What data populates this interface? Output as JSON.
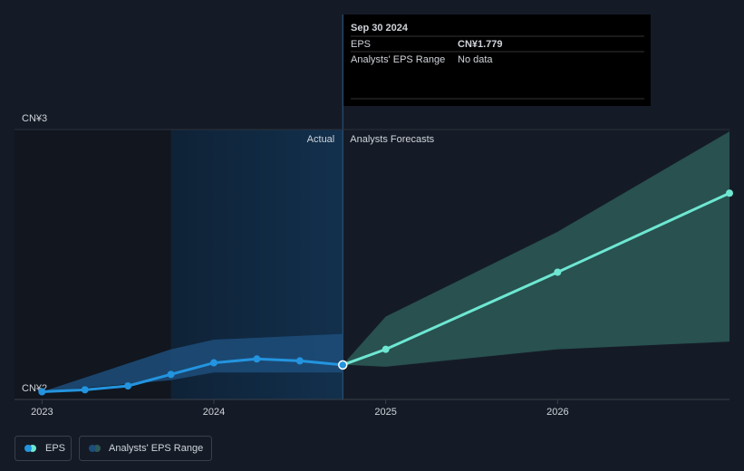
{
  "chart_data": {
    "type": "line",
    "xlim": [
      2022.84,
      2027
    ],
    "xticks": [
      2023,
      2024,
      2025,
      2026
    ],
    "ylim": [
      1.6,
      3
    ],
    "yticks": [
      {
        "value": 1.6,
        "label": "CN¥2"
      },
      {
        "value": 3,
        "label": "CN¥3"
      }
    ],
    "grid": true,
    "past_label": "Actual",
    "future_label": "Analysts Forecasts",
    "highlight": [
      2023.75,
      2024.75
    ],
    "series": [
      {
        "name": "EPS",
        "color": "#2394df",
        "x": [
          2023,
          2023.25,
          2023.5,
          2023.75,
          2024,
          2024.25,
          2024.5,
          2024.75
        ],
        "values": [
          1.64,
          1.65,
          1.67,
          1.73,
          1.79,
          1.81,
          1.8,
          1.779
        ]
      },
      {
        "color": "#6ee7d2",
        "x": [
          2024.75,
          2025,
          2026,
          2027
        ],
        "values": [
          1.779,
          1.86,
          2.26,
          2.67
        ]
      }
    ],
    "range_name": "Analysts' EPS Range",
    "ranges": [
      {
        "color": "#1d4e7a",
        "x": [
          2023,
          2023.75,
          2024,
          2024.75
        ],
        "low": [
          1.64,
          1.7,
          1.74,
          1.74
        ],
        "high": [
          1.64,
          1.86,
          1.91,
          1.94
        ]
      },
      {
        "color": "#2c5a58",
        "x": [
          2024.75,
          2025,
          2026,
          2027
        ],
        "low": [
          1.78,
          1.77,
          1.86,
          1.9
        ],
        "high": [
          1.78,
          2.03,
          2.47,
          2.99
        ]
      }
    ],
    "tooltip": {
      "date": "Sep 30 2024",
      "rows": [
        {
          "label": "EPS",
          "value": "CN¥1.779"
        },
        {
          "label": "Analysts' EPS Range",
          "value": "No data"
        }
      ]
    }
  }
}
